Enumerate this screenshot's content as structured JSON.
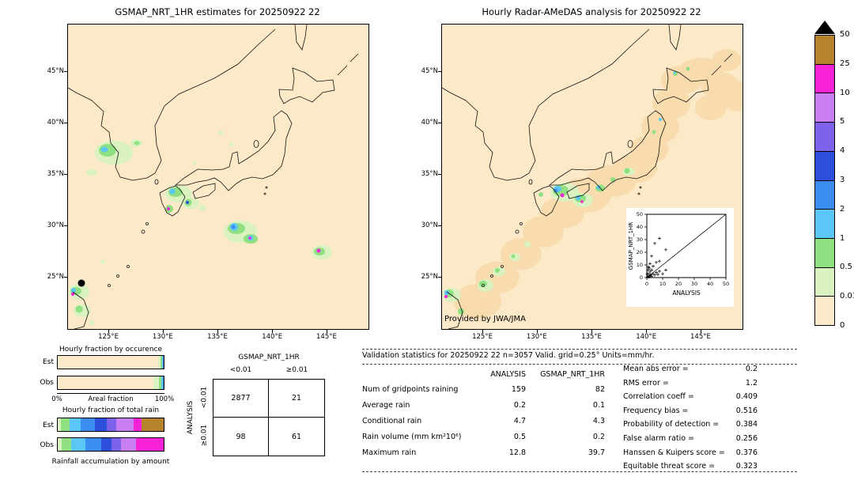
{
  "palette": {
    "map_bg": "#fbe9c8",
    "trace": "#f8dcae",
    "pale_green": "#d9f2c0",
    "green": "#8ee080",
    "cyan": "#5bc7f7",
    "blue": "#3b8df2",
    "deep_blue": "#2c50dc",
    "purple_blue": "#7e62ee",
    "violet": "#c87df2",
    "magenta": "#f822d6",
    "brown": "#b5832b"
  },
  "header": {
    "left_title": "GSMAP_NRT_1HR estimates for 20250922 22",
    "right_title": "Hourly Radar-AMeDAS analysis for 20250922 22"
  },
  "maps": {
    "credit": "Provided by JWA/JMA",
    "lat_ticks": [
      "45°N",
      "40°N",
      "35°N",
      "30°N",
      "25°N"
    ],
    "lon_ticks": [
      "125°E",
      "130°E",
      "135°E",
      "140°E",
      "145°E"
    ]
  },
  "chart_data": [
    {
      "name": "colorbar",
      "type": "heatmap",
      "levels_top_down": [
        "50",
        "25",
        "10",
        "5",
        "4",
        "3",
        "2",
        "1",
        "0.5",
        "0.01",
        "0"
      ],
      "colors_top_down": [
        "#b5832b",
        "#f822d6",
        "#c87df2",
        "#7e62ee",
        "#2c50dc",
        "#3b8df2",
        "#5bc7f7",
        "#8ee080",
        "#d9f2c0",
        "#fceac9"
      ]
    },
    {
      "name": "occurrence",
      "type": "bar",
      "title": "Hourly fraction by occurence",
      "xlabel": "Areal fraction",
      "x0_label": "0%",
      "x1_label": "100%",
      "categories": [
        "Est",
        "Obs"
      ],
      "series": [
        {
          "name": "Est",
          "segments": [
            {
              "color": "#fbe9c8",
              "pct": 94.5
            },
            {
              "color": "#d9f2c0",
              "pct": 2.5
            },
            {
              "color": "#8ee080",
              "pct": 1.5
            },
            {
              "color": "#5bc7f7",
              "pct": 0.8
            },
            {
              "color": "#3b8df2",
              "pct": 0.7
            }
          ]
        },
        {
          "name": "Obs",
          "segments": [
            {
              "color": "#fbe9c8",
              "pct": 90
            },
            {
              "color": "#d9f2c0",
              "pct": 5.5
            },
            {
              "color": "#8ee080",
              "pct": 2.5
            },
            {
              "color": "#5bc7f7",
              "pct": 1.2
            },
            {
              "color": "#3b8df2",
              "pct": 0.8
            }
          ]
        }
      ]
    },
    {
      "name": "total_rain",
      "type": "bar",
      "title": "Hourly fraction of total rain",
      "caption": "Rainfall accumulation by amount",
      "categories": [
        "Est",
        "Obs"
      ],
      "series": [
        {
          "name": "Est",
          "segments": [
            {
              "color": "#d9f2c0",
              "pct": 3
            },
            {
              "color": "#8ee080",
              "pct": 8
            },
            {
              "color": "#5bc7f7",
              "pct": 11
            },
            {
              "color": "#3b8df2",
              "pct": 13
            },
            {
              "color": "#2c50dc",
              "pct": 11
            },
            {
              "color": "#7e62ee",
              "pct": 9
            },
            {
              "color": "#c87df2",
              "pct": 17
            },
            {
              "color": "#f822d6",
              "pct": 7
            },
            {
              "color": "#b5832b",
              "pct": 21
            }
          ]
        },
        {
          "name": "Obs",
          "segments": [
            {
              "color": "#d9f2c0",
              "pct": 4
            },
            {
              "color": "#8ee080",
              "pct": 9
            },
            {
              "color": "#5bc7f7",
              "pct": 13
            },
            {
              "color": "#3b8df2",
              "pct": 15
            },
            {
              "color": "#2c50dc",
              "pct": 10
            },
            {
              "color": "#7e62ee",
              "pct": 9
            },
            {
              "color": "#c87df2",
              "pct": 14
            },
            {
              "color": "#f822d6",
              "pct": 26
            }
          ]
        }
      ]
    },
    {
      "name": "contingency",
      "type": "table",
      "col_group": "GSMAP_NRT_1HR",
      "row_group": "ANALYSIS",
      "col_labels": [
        "<0.01",
        "≥0.01"
      ],
      "row_labels": [
        "<0.01",
        "≥0.01"
      ],
      "values": [
        [
          2877,
          21
        ],
        [
          98,
          61
        ]
      ]
    },
    {
      "name": "validation",
      "type": "table",
      "title": "Validation statistics for 20250922 22  n=3057 Valid. grid=0.25° Units=mm/hr.",
      "columns": [
        "ANALYSIS",
        "GSMAP_NRT_1HR"
      ],
      "rows": [
        {
          "label": "Num of gridpoints raining",
          "analysis": 159,
          "gsmap": 82
        },
        {
          "label": "Average rain",
          "analysis": 0.2,
          "gsmap": 0.1
        },
        {
          "label": "Conditional rain",
          "analysis": 4.7,
          "gsmap": 4.3
        },
        {
          "label": "Rain volume (mm km²10⁶)",
          "analysis": 0.5,
          "gsmap": 0.2
        },
        {
          "label": "Maximum rain",
          "analysis": 12.8,
          "gsmap": 39.7
        }
      ],
      "scalars": [
        {
          "label": "Mean abs error =",
          "value": 0.2
        },
        {
          "label": "RMS error =",
          "value": 1.2
        },
        {
          "label": "Correlation coeff =",
          "value": 0.409
        },
        {
          "label": "Frequency bias =",
          "value": 0.516
        },
        {
          "label": "Probability of detection =",
          "value": 0.384
        },
        {
          "label": "False alarm ratio =",
          "value": 0.256
        },
        {
          "label": "Hanssen & Kuipers score =",
          "value": 0.376
        },
        {
          "label": "Equitable threat score =",
          "value": 0.323
        }
      ]
    },
    {
      "name": "inset_scatter",
      "type": "scatter",
      "xlabel": "ANALYSIS",
      "ylabel": "GSMAP_NRT_1HR",
      "xlim": [
        0,
        50
      ],
      "ylim": [
        0,
        50
      ],
      "ticks": [
        0,
        10,
        20,
        30,
        40,
        50
      ],
      "diagonal": true,
      "points": [
        [
          0.5,
          0.4
        ],
        [
          1,
          1
        ],
        [
          1.5,
          0.6
        ],
        [
          2,
          1.5
        ],
        [
          2.5,
          2.2
        ],
        [
          3,
          1
        ],
        [
          1,
          3
        ],
        [
          2,
          4.5
        ],
        [
          4,
          3
        ],
        [
          5,
          2
        ],
        [
          0.8,
          6
        ],
        [
          1.5,
          7.5
        ],
        [
          3,
          6
        ],
        [
          6,
          4
        ],
        [
          7,
          2.5
        ],
        [
          8,
          5
        ],
        [
          10,
          3
        ],
        [
          12,
          6
        ],
        [
          4,
          9
        ],
        [
          2,
          11
        ],
        [
          6,
          12
        ],
        [
          8,
          13
        ],
        [
          3,
          17
        ],
        [
          5,
          27
        ],
        [
          8,
          31
        ],
        [
          12,
          22
        ],
        [
          1,
          8.5
        ],
        [
          0.3,
          2.8
        ]
      ]
    }
  ]
}
